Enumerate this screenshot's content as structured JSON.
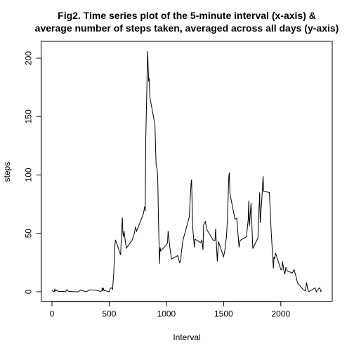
{
  "chart_data": {
    "type": "line",
    "title": [
      "Fig2. Time series plot of the 5-minute interval (x-axis) &",
      "average number of steps taken, averaged across all days (y-axis)"
    ],
    "xlabel": "Interval",
    "ylabel": "steps",
    "x": [
      0,
      10,
      20,
      25,
      30,
      45,
      55,
      100,
      120,
      130,
      145,
      200,
      230,
      250,
      300,
      330,
      400,
      420,
      435,
      440,
      445,
      450,
      455,
      500,
      510,
      520,
      530,
      540,
      550,
      555,
      600,
      610,
      615,
      620,
      625,
      630,
      640,
      650,
      700,
      720,
      730,
      740,
      800,
      810,
      815,
      820,
      830,
      835,
      840,
      845,
      850,
      855,
      900,
      910,
      920,
      925,
      930,
      935,
      940,
      945,
      950,
      1000,
      1010,
      1015,
      1030,
      1045,
      1100,
      1115,
      1125,
      1130,
      1145,
      1150,
      1200,
      1215,
      1220,
      1230,
      1245,
      1250,
      1300,
      1310,
      1320,
      1325,
      1340,
      1355,
      1410,
      1425,
      1430,
      1445,
      1455,
      1500,
      1510,
      1525,
      1535,
      1545,
      1550,
      1555,
      1600,
      1615,
      1620,
      1635,
      1645,
      1700,
      1715,
      1720,
      1725,
      1740,
      1755,
      1800,
      1815,
      1820,
      1835,
      1845,
      1850,
      1900,
      1915,
      1930,
      1935,
      1940,
      1945,
      1955,
      2000,
      2010,
      2015,
      2025,
      2035,
      2045,
      2055,
      2100,
      2115,
      2130,
      2145,
      2150,
      2200,
      2215,
      2225,
      2235,
      2245,
      2300,
      2310,
      2330,
      2340,
      2350,
      2355
    ],
    "series": [
      {
        "name": "steps",
        "color": "#000000",
        "values": [
          1.7,
          0.1,
          0.1,
          2.1,
          0.5,
          1.5,
          0.2,
          0.3,
          0,
          1.8,
          0.4,
          0,
          0,
          1.5,
          0,
          1.6,
          1.2,
          0.3,
          0.7,
          3.5,
          0.8,
          3.1,
          1.1,
          0,
          3.0,
          3.3,
          2.1,
          16,
          39.5,
          44.5,
          31.5,
          53.8,
          63.5,
          50,
          47,
          52,
          44,
          37.4,
          44,
          49.9,
          55.7,
          51.8,
          67,
          73,
          69,
          131,
          177,
          206,
          195,
          180,
          183,
          167,
          143,
          109,
          104,
          95,
          66,
          45,
          24,
          38,
          35,
          40,
          42,
          52,
          38,
          28,
          31,
          25,
          26,
          33,
          44,
          46,
          64,
          92,
          96,
          55,
          38,
          45,
          42,
          44,
          36,
          57,
          60,
          53,
          44,
          44,
          54,
          26,
          43,
          30,
          35,
          47,
          65,
          98,
          102,
          84,
          62,
          63,
          57,
          38,
          44,
          47,
          62,
          78,
          56,
          76,
          37,
          46,
          85,
          59,
          81,
          99,
          86,
          85,
          53,
          28,
          20,
          30,
          28,
          33,
          19,
          19,
          26,
          19,
          15,
          21,
          18,
          16,
          19,
          14,
          8,
          7,
          1.5,
          0.7,
          8,
          2,
          0.1,
          3.3,
          0,
          2.6,
          3.3,
          0.2,
          1.1
        ]
      }
    ],
    "xlim": [
      -94.2,
      2449.2
    ],
    "xticks": [
      0,
      500,
      1000,
      1500,
      2000
    ],
    "ylim": [
      -8.25,
      214.4
    ],
    "yticks": [
      0,
      50,
      100,
      150,
      200
    ]
  }
}
